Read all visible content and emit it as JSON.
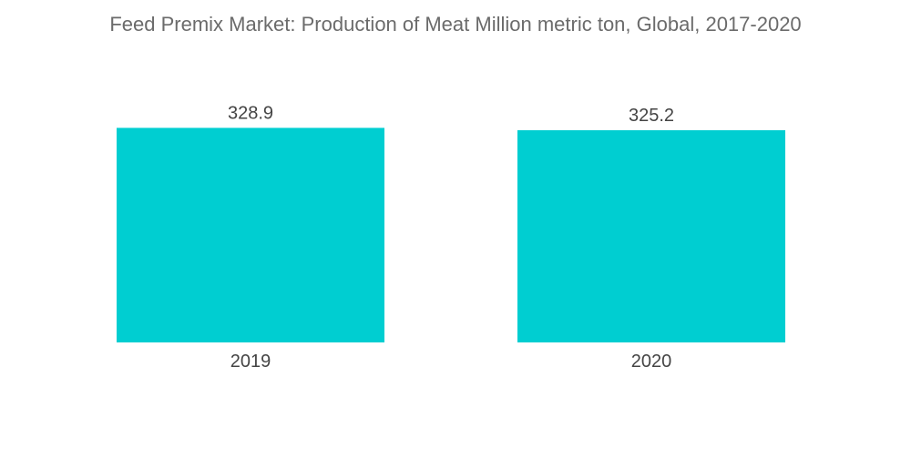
{
  "chart_data": {
    "type": "bar",
    "title": "Feed Premix Market: Production of Meat Million metric ton, Global, 2017-2020",
    "categories": [
      "2019",
      "2020"
    ],
    "values": [
      328.9,
      325.2
    ],
    "value_labels": [
      "328.9",
      "325.2"
    ],
    "xlabel": "",
    "ylabel": "",
    "ylim": [
      0,
      335
    ],
    "grid": false,
    "legend": "none",
    "bar_color": "#00CED1"
  }
}
